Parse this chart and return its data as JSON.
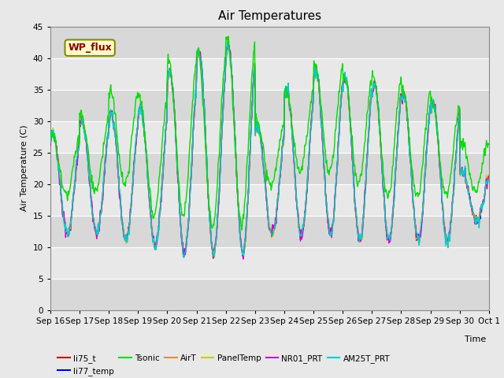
{
  "title": "Air Temperatures",
  "xlabel": "Time",
  "ylabel": "Air Temperature (C)",
  "ylim": [
    0,
    45
  ],
  "yticks": [
    0,
    5,
    10,
    15,
    20,
    25,
    30,
    35,
    40,
    45
  ],
  "x_tick_labels": [
    "Sep 16",
    "Sep 17",
    "Sep 18",
    "Sep 19",
    "Sep 20",
    "Sep 21",
    "Sep 22",
    "Sep 23",
    "Sep 24",
    "Sep 25",
    "Sep 26",
    "Sep 27",
    "Sep 28",
    "Sep 29",
    "Sep 30",
    "Oct 1"
  ],
  "annotation_text": "WP_flux",
  "series_colors": {
    "li75_t": "#cc0000",
    "li77_temp": "#0000cc",
    "Tsonic": "#00dd00",
    "AirT": "#ff8800",
    "PanelTemp": "#cccc00",
    "NR01_PRT": "#cc00cc",
    "AM25T_PRT": "#00cccc"
  },
  "fig_bg_color": "#e8e8e8",
  "plot_bg_light": "#d8d8d8",
  "plot_bg_dark": "#e8e8e8",
  "grid_color": "#ffffff",
  "figsize": [
    6.4,
    4.8
  ],
  "dpi": 100
}
